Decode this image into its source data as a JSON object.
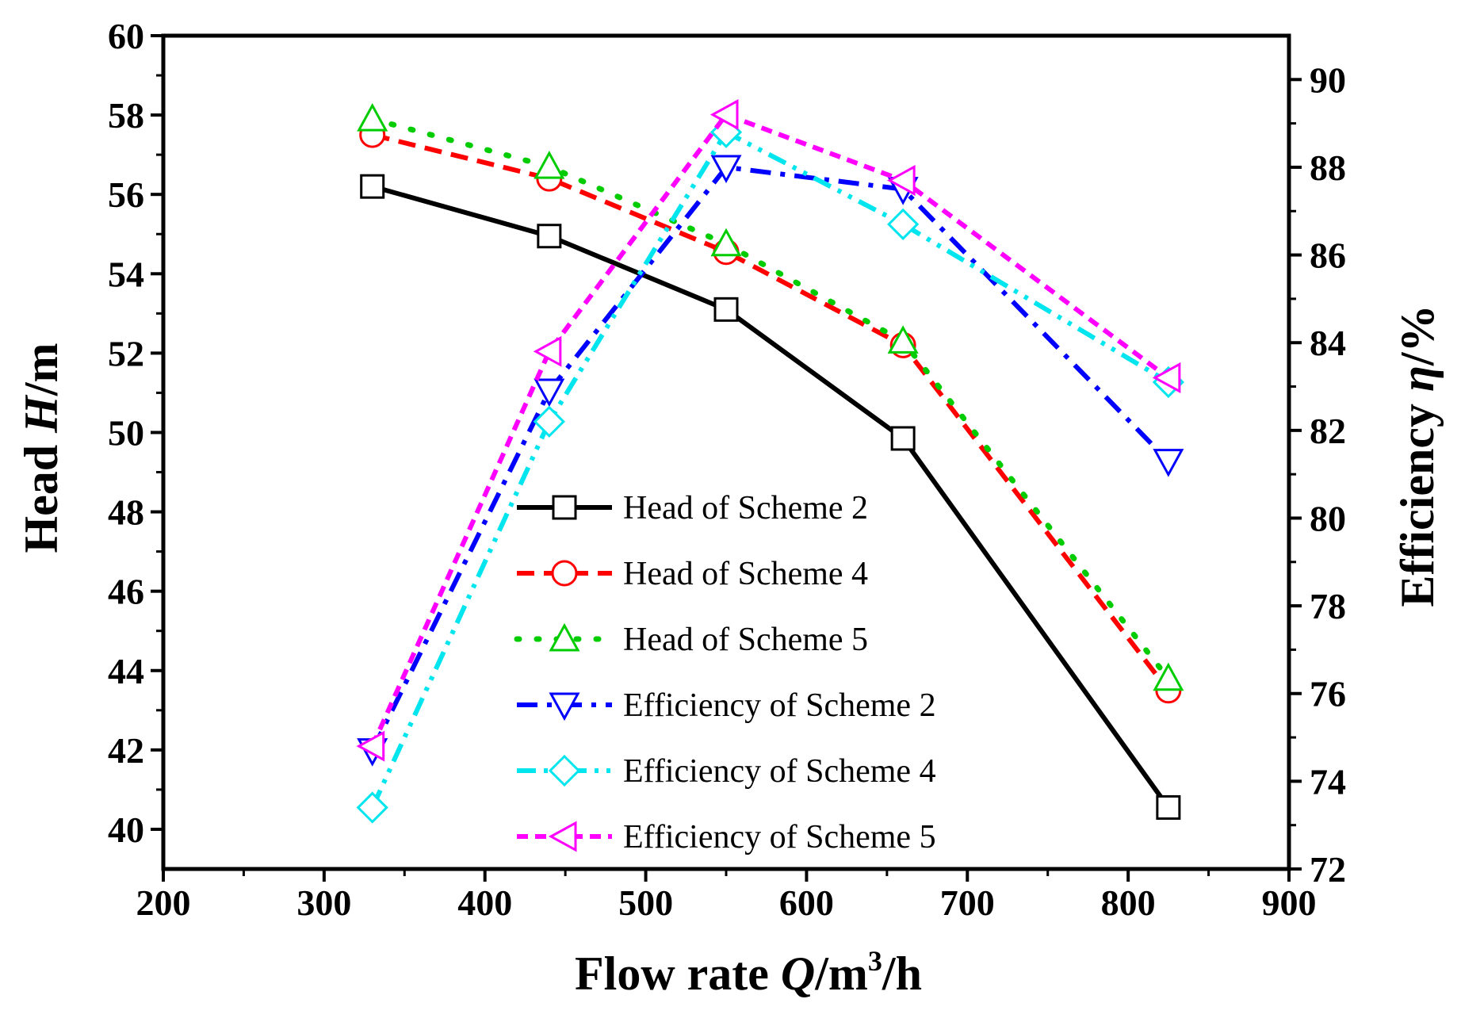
{
  "chart_data": {
    "type": "line",
    "x": [
      330,
      440,
      550,
      660,
      825
    ],
    "xlabel_prefix": "Flow rate ",
    "xlabel_var": "Q",
    "xlabel_mid": "/m",
    "xlabel_sup": "3",
    "xlabel_suffix": "/h",
    "ylabel_left_prefix": "Head ",
    "ylabel_left_var": "H",
    "ylabel_left_suffix": "/m",
    "ylabel_right_prefix": "Efficiency ",
    "ylabel_right_var": "η",
    "ylabel_right_suffix": "/%",
    "xlim": [
      200,
      900
    ],
    "ylim_left": [
      39,
      60
    ],
    "ylim_right": [
      72,
      91
    ],
    "xticks": [
      "200",
      "300",
      "400",
      "500",
      "600",
      "700",
      "800",
      "900"
    ],
    "yticks_left": [
      "40",
      "42",
      "44",
      "46",
      "48",
      "50",
      "52",
      "54",
      "56",
      "58",
      "60"
    ],
    "yticks_right": [
      "72",
      "74",
      "76",
      "78",
      "80",
      "82",
      "84",
      "86",
      "88",
      "90"
    ],
    "legend_position": "center",
    "series": [
      {
        "name": "Head of Scheme 2",
        "axis": "left",
        "values": [
          56.2,
          54.95,
          53.1,
          49.85,
          40.55
        ],
        "color": "#000000",
        "marker": "square",
        "line": "solid"
      },
      {
        "name": "Head of Scheme 4",
        "axis": "left",
        "values": [
          57.5,
          56.4,
          54.55,
          52.2,
          43.5
        ],
        "color": "#ff0000",
        "marker": "circle",
        "line": "dash"
      },
      {
        "name": "Head of Scheme 5",
        "axis": "left",
        "values": [
          57.9,
          56.7,
          54.75,
          52.3,
          43.8
        ],
        "color": "#00cc00",
        "marker": "triangle-up",
        "line": "dot"
      },
      {
        "name": "Efficiency of Scheme 2",
        "axis": "right",
        "values": [
          74.7,
          82.9,
          88.0,
          87.5,
          81.3
        ],
        "color": "#0000ff",
        "marker": "triangle-down",
        "line": "dashdot"
      },
      {
        "name": "Efficiency of Scheme 4",
        "axis": "right",
        "values": [
          73.4,
          82.2,
          88.8,
          86.7,
          83.1
        ],
        "color": "#00e5ee",
        "marker": "diamond",
        "line": "dashdotdot"
      },
      {
        "name": "Efficiency of Scheme 5",
        "axis": "right",
        "values": [
          74.8,
          83.8,
          89.2,
          87.7,
          83.2
        ],
        "color": "#ff00ff",
        "marker": "triangle-left",
        "line": "shortdash"
      }
    ]
  }
}
